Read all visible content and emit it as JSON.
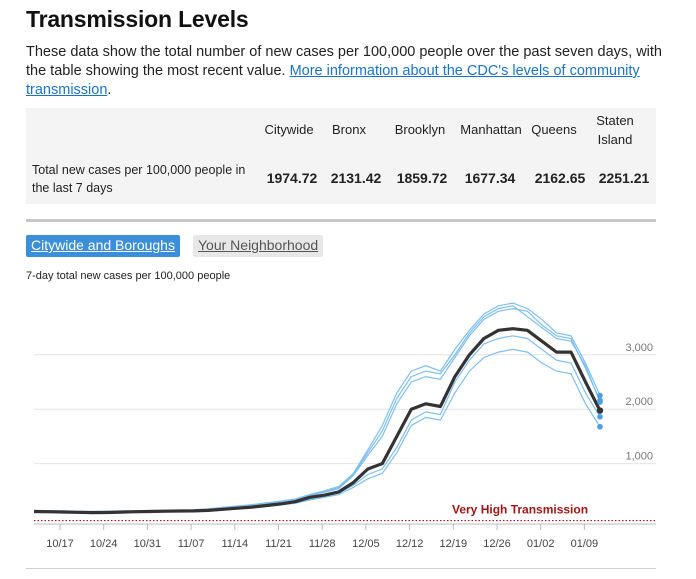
{
  "header": {
    "title": "Transmission Levels",
    "intro_text": "These data show the total number of new cases per 100,000 people over the past seven days, with the table showing the most recent value. ",
    "link_text": "More information about the CDC's levels of community transmission",
    "intro_end": "."
  },
  "table": {
    "columns": [
      "Citywide",
      "Bronx",
      "Brooklyn",
      "Manhattan",
      "Queens",
      "Staten Island"
    ],
    "row_label": "Total new cases per 100,000 people in the last 7 days",
    "values": [
      "1974.72",
      "2131.42",
      "1859.72",
      "1677.34",
      "2162.65",
      "2251.21"
    ]
  },
  "tabs": {
    "active": "Citywide and Boroughs",
    "inactive": "Your Neighborhood"
  },
  "chart_data": {
    "type": "line",
    "title": "7-day total new cases per 100,000 people",
    "ylim": [
      0,
      3900
    ],
    "y_ticks": [
      1000,
      2000,
      3000
    ],
    "y_tick_labels": [
      "1,000",
      "2,000",
      "3,000"
    ],
    "x_tick_labels": [
      "10/17",
      "10/24",
      "10/31",
      "11/07",
      "11/14",
      "11/21",
      "11/28",
      "12/05",
      "12/12",
      "12/19",
      "12/26",
      "01/02",
      "01/09"
    ],
    "threshold": {
      "value": 100,
      "label": "Very High Transmission",
      "color": "#a31515"
    },
    "grid": true,
    "x_start": "2021-10-12",
    "colors": {
      "citywide": "#333333",
      "boroughs": "#7fbfee",
      "endpoint": "#4a9fe0"
    },
    "series": [
      {
        "name": "Citywide",
        "values": [
          120,
          115,
          110,
          105,
          100,
          102,
          108,
          115,
          120,
          125,
          128,
          130,
          140,
          160,
          180,
          200,
          230,
          260,
          300,
          380,
          420,
          480,
          650,
          900,
          1000,
          1500,
          2000,
          2100,
          2050,
          2600,
          3000,
          3300,
          3450,
          3480,
          3450,
          3250,
          3050,
          3050,
          2500,
          1975
        ]
      },
      {
        "name": "Bronx",
        "values": [
          110,
          110,
          100,
          95,
          95,
          100,
          110,
          112,
          120,
          130,
          135,
          140,
          160,
          180,
          210,
          240,
          270,
          300,
          340,
          420,
          480,
          560,
          800,
          1200,
          1600,
          2200,
          2600,
          2700,
          2650,
          3000,
          3400,
          3700,
          3850,
          3900,
          3700,
          3500,
          3300,
          3250,
          2800,
          2131
        ]
      },
      {
        "name": "Brooklyn",
        "values": [
          115,
          110,
          105,
          100,
          100,
          104,
          110,
          115,
          118,
          122,
          124,
          125,
          135,
          150,
          170,
          190,
          220,
          250,
          280,
          350,
          400,
          460,
          600,
          800,
          900,
          1300,
          1800,
          1950,
          1900,
          2500,
          2900,
          3200,
          3300,
          3350,
          3300,
          3100,
          2900,
          2850,
          2300,
          1860
        ]
      },
      {
        "name": "Manhattan",
        "values": [
          100,
          100,
          95,
          90,
          90,
          92,
          95,
          100,
          105,
          110,
          112,
          115,
          125,
          145,
          165,
          185,
          210,
          240,
          270,
          330,
          380,
          430,
          560,
          720,
          820,
          1200,
          1700,
          1850,
          1800,
          2300,
          2700,
          2950,
          3050,
          3100,
          3050,
          2850,
          2700,
          2650,
          2100,
          1677
        ]
      },
      {
        "name": "Queens",
        "values": [
          125,
          120,
          115,
          110,
          108,
          110,
          115,
          120,
          125,
          130,
          132,
          135,
          150,
          175,
          200,
          220,
          250,
          280,
          320,
          410,
          470,
          540,
          780,
          1150,
          1500,
          2100,
          2500,
          2600,
          2550,
          2950,
          3350,
          3650,
          3800,
          3850,
          3800,
          3550,
          3350,
          3300,
          2750,
          2163
        ]
      },
      {
        "name": "Staten Island",
        "values": [
          140,
          135,
          130,
          125,
          122,
          125,
          130,
          135,
          138,
          142,
          145,
          150,
          170,
          195,
          220,
          245,
          280,
          310,
          350,
          430,
          500,
          580,
          820,
          1250,
          1700,
          2300,
          2700,
          2800,
          2700,
          3100,
          3450,
          3750,
          3900,
          3950,
          3850,
          3650,
          3400,
          3350,
          2850,
          2251
        ]
      }
    ]
  }
}
